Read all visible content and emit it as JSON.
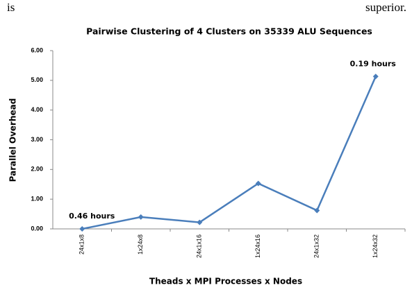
{
  "page_text": [
    "is",
    "superior."
  ],
  "chart_data": {
    "type": "line",
    "title": "Pairwise Clustering of 4 Clusters  on 35339 ALU Sequences",
    "x_label": "Theads x  MPI Processes x Nodes",
    "y_label": "Parallel Overhead",
    "categories": [
      "24x1x8",
      "1x24x8",
      "24x1x16",
      "1x24x16",
      "24x1x32",
      "1x24x32"
    ],
    "values": [
      0,
      0.4,
      0.22,
      1.53,
      0.62,
      5.13
    ],
    "color": "#4a7ebb",
    "ylim": [
      0,
      6
    ],
    "yticks": [
      {
        "value": 0,
        "label": "0.00"
      },
      {
        "value": 1,
        "label": "1.00"
      },
      {
        "value": 2,
        "label": "2.00"
      },
      {
        "value": 3,
        "label": "3.00"
      },
      {
        "value": 4,
        "label": "4.00"
      },
      {
        "value": 5,
        "label": "5.00"
      },
      {
        "value": 6,
        "label": "6.00"
      }
    ],
    "grid": false,
    "annotations": [
      {
        "text": "0.46 hours",
        "category": 0
      },
      {
        "text": "0.19 hours",
        "category": 5
      }
    ]
  }
}
